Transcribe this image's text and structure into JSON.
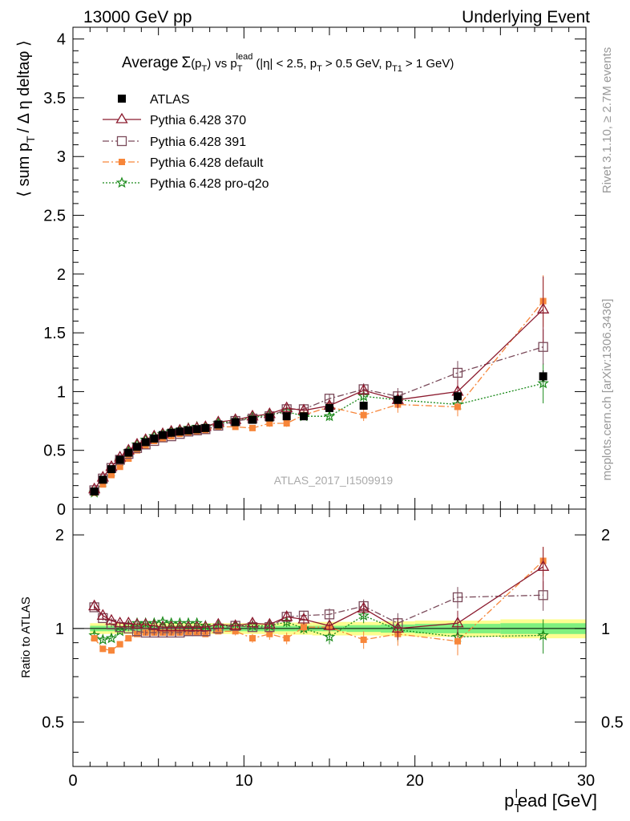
{
  "header": {
    "left": "13000 GeV pp",
    "right": "Underlying Event"
  },
  "side": {
    "rivet": "Rivet 3.1.10, ≥ 2.7M events",
    "mcplots": "mcplots.cern.ch [arXiv:1306.3436]"
  },
  "colors": {
    "atlas": "#000000",
    "p370": "#8b1a2e",
    "p391": "#7a4a5a",
    "pdefault": "#f7863a",
    "pq2o": "#1a8a1a",
    "band_inner": "#7ff07f",
    "band_outer": "#fdfd8f"
  },
  "chart_data": [
    {
      "type": "scatter",
      "title": {
        "prefix": "Average",
        "sigma": "Σ",
        "arg": "(p",
        "arg_sub": "T",
        "arg_close": ")",
        "vs": "vs p",
        "vs_sub": "T",
        "vs_sup": "lead",
        "cut1": "(|η| < 2.5, p",
        "cut1_sub": "T",
        "cut2": "> 0.5 GeV, p",
        "cut2_sub": "T1",
        "cut3": "> 1 GeV)"
      },
      "ylabel": {
        "open": "⟨ sum p",
        "sub": "T",
        "rest": "/ Δ η deltaφ ⟩"
      },
      "analysis_label": "ATLAS_2017_I1509919",
      "xlim": [
        0,
        30
      ],
      "ylim": [
        0,
        4.1
      ],
      "yticks": [
        0,
        0.5,
        1,
        1.5,
        2,
        2.5,
        3,
        3.5,
        4
      ],
      "ytick_labels": [
        "0",
        "0.5",
        "1",
        "1.5",
        "2",
        "2.5",
        "3",
        "3.5",
        "4"
      ],
      "x": [
        1.25,
        1.75,
        2.25,
        2.75,
        3.25,
        3.75,
        4.25,
        4.75,
        5.25,
        5.75,
        6.25,
        6.75,
        7.25,
        7.75,
        8.5,
        9.5,
        10.5,
        11.5,
        12.5,
        13.5,
        15,
        17,
        19,
        22.5,
        27.5
      ],
      "series": [
        {
          "name": "ATLAS",
          "key": "atlas",
          "marker": "filled-square",
          "values": [
            0.15,
            0.25,
            0.34,
            0.42,
            0.48,
            0.53,
            0.57,
            0.6,
            0.63,
            0.65,
            0.66,
            0.67,
            0.68,
            0.69,
            0.72,
            0.74,
            0.76,
            0.78,
            0.79,
            0.79,
            0.86,
            0.88,
            0.93,
            0.96,
            1.13
          ],
          "errors": [
            0.01,
            0.01,
            0.01,
            0.01,
            0.01,
            0.01,
            0.01,
            0.01,
            0.01,
            0.01,
            0.01,
            0.01,
            0.01,
            0.01,
            0.01,
            0.01,
            0.01,
            0.02,
            0.02,
            0.02,
            0.02,
            0.03,
            0.03,
            0.04,
            0.05
          ]
        },
        {
          "name": "Pythia 6.428 370",
          "key": "p370",
          "marker": "open-triangle",
          "values": [
            0.17,
            0.27,
            0.36,
            0.44,
            0.5,
            0.55,
            0.59,
            0.62,
            0.64,
            0.66,
            0.67,
            0.68,
            0.69,
            0.7,
            0.74,
            0.76,
            0.79,
            0.81,
            0.86,
            0.84,
            0.88,
            1.01,
            0.93,
            1.0,
            1.7
          ],
          "errors": [
            0.01,
            0.01,
            0.01,
            0.01,
            0.01,
            0.01,
            0.01,
            0.01,
            0.01,
            0.01,
            0.01,
            0.01,
            0.01,
            0.01,
            0.01,
            0.02,
            0.02,
            0.02,
            0.03,
            0.03,
            0.04,
            0.05,
            0.07,
            0.1,
            0.28
          ]
        },
        {
          "name": "Pythia 6.428 391",
          "key": "p391",
          "marker": "open-square",
          "values": [
            0.16,
            0.26,
            0.35,
            0.42,
            0.47,
            0.52,
            0.55,
            0.58,
            0.61,
            0.62,
            0.64,
            0.66,
            0.67,
            0.68,
            0.71,
            0.75,
            0.77,
            0.79,
            0.85,
            0.85,
            0.94,
            1.02,
            0.96,
            1.16,
            1.38
          ],
          "errors": [
            0.01,
            0.01,
            0.01,
            0.01,
            0.01,
            0.01,
            0.01,
            0.01,
            0.01,
            0.01,
            0.01,
            0.01,
            0.01,
            0.01,
            0.01,
            0.02,
            0.02,
            0.02,
            0.03,
            0.03,
            0.04,
            0.05,
            0.07,
            0.1,
            0.15
          ]
        },
        {
          "name": "Pythia 6.428 default",
          "key": "pdefault",
          "marker": "filled-square",
          "values": [
            0.14,
            0.21,
            0.29,
            0.36,
            0.43,
            0.5,
            0.54,
            0.58,
            0.6,
            0.62,
            0.64,
            0.65,
            0.66,
            0.67,
            0.7,
            0.7,
            0.69,
            0.73,
            0.73,
            0.8,
            0.87,
            0.8,
            0.89,
            0.87,
            1.77
          ],
          "errors": [
            0.01,
            0.01,
            0.01,
            0.01,
            0.01,
            0.01,
            0.01,
            0.01,
            0.01,
            0.01,
            0.01,
            0.01,
            0.01,
            0.01,
            0.02,
            0.02,
            0.02,
            0.03,
            0.03,
            0.03,
            0.04,
            0.05,
            0.07,
            0.08,
            0.22
          ]
        },
        {
          "name": "Pythia 6.428 pro-q2o",
          "key": "pq2o",
          "marker": "open-star",
          "values": [
            0.14,
            0.23,
            0.32,
            0.41,
            0.49,
            0.55,
            0.59,
            0.62,
            0.64,
            0.66,
            0.67,
            0.69,
            0.7,
            0.7,
            0.73,
            0.75,
            0.78,
            0.8,
            0.83,
            0.79,
            0.79,
            0.96,
            0.93,
            0.89,
            1.07
          ],
          "errors": [
            0.01,
            0.01,
            0.01,
            0.01,
            0.01,
            0.01,
            0.01,
            0.01,
            0.01,
            0.01,
            0.01,
            0.01,
            0.01,
            0.01,
            0.01,
            0.02,
            0.02,
            0.02,
            0.03,
            0.03,
            0.04,
            0.05,
            0.07,
            0.08,
            0.17
          ]
        }
      ]
    },
    {
      "type": "scatter",
      "ylabel": "Ratio to ATLAS",
      "xlabel": {
        "main": "p",
        "sub": "T",
        "sup": "l",
        "rest": "ead [GeV]"
      },
      "xlim": [
        0,
        30
      ],
      "ylim": [
        0.36,
        2.42
      ],
      "xticks": [
        0,
        10,
        20,
        30
      ],
      "xtick_labels": [
        "0",
        "10",
        "20",
        "30"
      ],
      "yticks": [
        0.5,
        1,
        2
      ],
      "ytick_labels": [
        "0.5",
        "1",
        "2"
      ],
      "band_edges": [
        1.0,
        1.5,
        2.0,
        2.5,
        3.0,
        3.5,
        4.0,
        4.5,
        5.0,
        5.5,
        6.0,
        6.5,
        7.0,
        7.5,
        8.0,
        9.0,
        10.0,
        11.0,
        12.0,
        13.0,
        14.0,
        16.0,
        18.0,
        20.0,
        25.0,
        30.0
      ],
      "band_inner": [
        0.02,
        0.02,
        0.02,
        0.02,
        0.02,
        0.02,
        0.02,
        0.02,
        0.02,
        0.02,
        0.02,
        0.02,
        0.02,
        0.02,
        0.02,
        0.02,
        0.02,
        0.02,
        0.02,
        0.02,
        0.02,
        0.025,
        0.03,
        0.035,
        0.04
      ],
      "band_outer": [
        0.04,
        0.04,
        0.04,
        0.04,
        0.04,
        0.04,
        0.04,
        0.04,
        0.04,
        0.04,
        0.04,
        0.04,
        0.04,
        0.04,
        0.04,
        0.04,
        0.04,
        0.04,
        0.045,
        0.045,
        0.05,
        0.05,
        0.055,
        0.06,
        0.07
      ],
      "series": [
        {
          "key": "p370",
          "values": [
            1.18,
            1.1,
            1.06,
            1.04,
            1.04,
            1.03,
            1.03,
            1.02,
            1.01,
            1.01,
            1.01,
            1.01,
            1.01,
            1.01,
            1.03,
            1.02,
            1.04,
            1.03,
            1.09,
            1.07,
            1.02,
            1.16,
            1.0,
            1.04,
            1.58
          ],
          "errors": [
            0.02,
            0.02,
            0.02,
            0.02,
            0.02,
            0.02,
            0.02,
            0.02,
            0.02,
            0.02,
            0.02,
            0.02,
            0.02,
            0.02,
            0.02,
            0.03,
            0.03,
            0.03,
            0.04,
            0.04,
            0.05,
            0.06,
            0.08,
            0.1,
            0.25
          ]
        },
        {
          "key": "p391",
          "values": [
            1.17,
            1.08,
            1.03,
            1.01,
            1.0,
            0.98,
            0.97,
            0.97,
            0.97,
            0.97,
            0.97,
            0.98,
            0.98,
            0.98,
            1.0,
            1.02,
            1.01,
            1.01,
            1.09,
            1.1,
            1.11,
            1.18,
            1.04,
            1.26,
            1.28
          ],
          "errors": [
            0.02,
            0.02,
            0.02,
            0.02,
            0.02,
            0.02,
            0.02,
            0.02,
            0.02,
            0.02,
            0.02,
            0.02,
            0.02,
            0.02,
            0.02,
            0.03,
            0.03,
            0.03,
            0.04,
            0.04,
            0.05,
            0.06,
            0.08,
            0.1,
            0.14
          ]
        },
        {
          "key": "pdefault",
          "values": [
            0.93,
            0.86,
            0.85,
            0.89,
            0.93,
            0.96,
            0.97,
            0.97,
            0.97,
            0.97,
            0.97,
            0.97,
            0.97,
            0.96,
            0.98,
            0.98,
            0.93,
            0.96,
            0.93,
            1.01,
            1.01,
            0.92,
            0.96,
            0.91,
            1.65
          ],
          "errors": [
            0.02,
            0.02,
            0.02,
            0.02,
            0.02,
            0.02,
            0.02,
            0.02,
            0.02,
            0.02,
            0.02,
            0.02,
            0.02,
            0.02,
            0.02,
            0.03,
            0.03,
            0.04,
            0.04,
            0.04,
            0.05,
            0.06,
            0.08,
            0.09,
            0.18
          ]
        },
        {
          "key": "pq2o",
          "values": [
            0.95,
            0.92,
            0.93,
            0.98,
            1.02,
            1.04,
            1.04,
            1.04,
            1.05,
            1.04,
            1.04,
            1.04,
            1.04,
            1.02,
            1.02,
            1.02,
            1.02,
            1.02,
            1.05,
            1.0,
            0.94,
            1.1,
            0.99,
            0.94,
            0.95
          ],
          "errors": [
            0.02,
            0.02,
            0.02,
            0.02,
            0.02,
            0.02,
            0.02,
            0.02,
            0.02,
            0.02,
            0.02,
            0.02,
            0.02,
            0.02,
            0.02,
            0.03,
            0.03,
            0.03,
            0.04,
            0.04,
            0.05,
            0.06,
            0.08,
            0.09,
            0.12
          ]
        }
      ]
    }
  ]
}
